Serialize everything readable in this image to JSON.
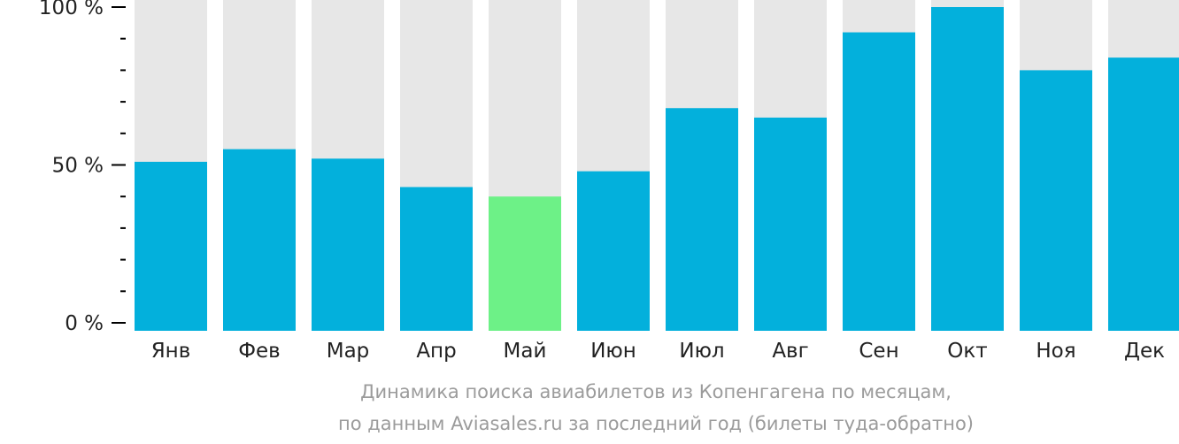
{
  "chart_data": {
    "type": "bar",
    "categories": [
      "Янв",
      "Фев",
      "Мар",
      "Апр",
      "Май",
      "Июн",
      "Июл",
      "Авг",
      "Сен",
      "Окт",
      "Ноя",
      "Дек"
    ],
    "values": [
      51,
      55,
      52,
      43,
      40,
      48,
      68,
      65,
      92,
      100,
      80,
      84
    ],
    "ylim": [
      0,
      100
    ],
    "yticks": [
      {
        "value": 100,
        "label": "100 %"
      },
      {
        "value": 50,
        "label": "50 %"
      },
      {
        "value": 0,
        "label": "0 %"
      }
    ],
    "highlight_index": 4,
    "caption": [
      "Динамика поиска авиабилетов из Копенгагена по месяцам,",
      "по данным Aviasales.ru за последний год (билеты туда-обратно)"
    ],
    "colors": {
      "bar": "#03b0dc",
      "highlight": "#6df187",
      "background_bar": "#e7e7e7",
      "axis": "#000000",
      "caption": "#9b9b9b"
    }
  }
}
